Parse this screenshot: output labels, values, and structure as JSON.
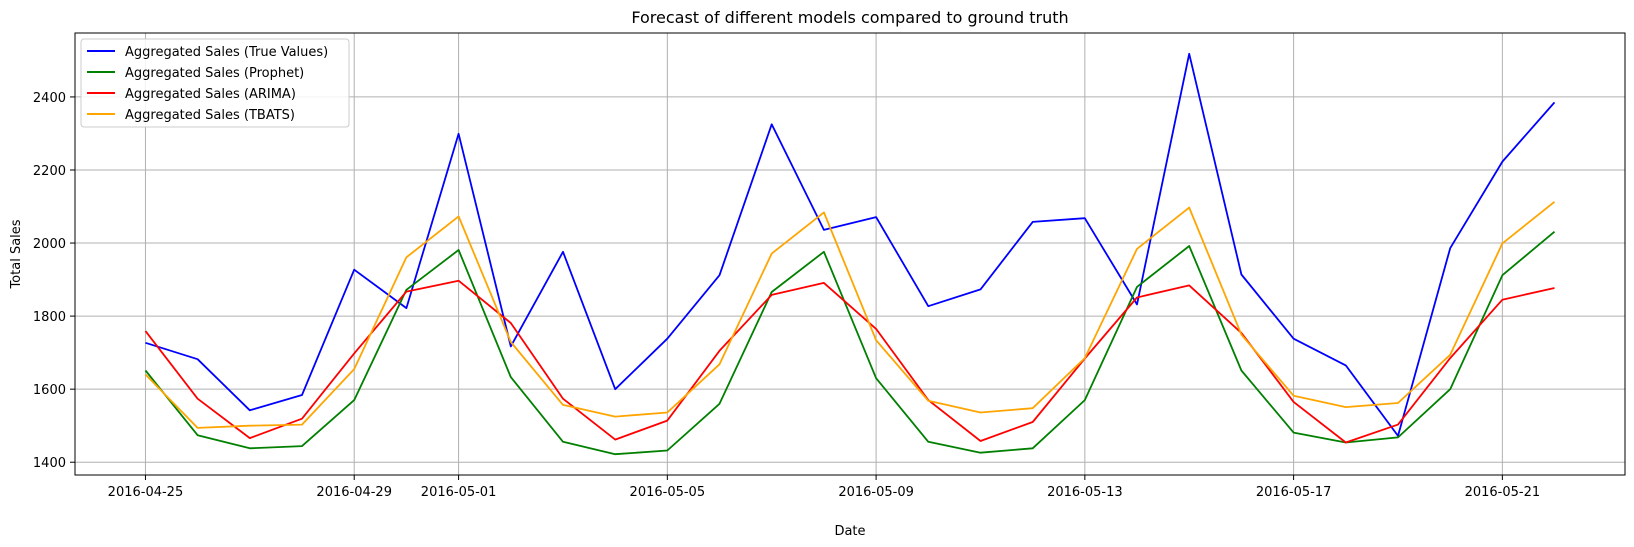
{
  "chart_data": {
    "type": "line",
    "title": "Forecast of different models compared to ground truth",
    "xlabel": "Date",
    "ylabel": "Total Sales",
    "x": [
      "2016-04-25",
      "2016-04-26",
      "2016-04-27",
      "2016-04-28",
      "2016-04-29",
      "2016-04-30",
      "2016-05-01",
      "2016-05-02",
      "2016-05-03",
      "2016-05-04",
      "2016-05-05",
      "2016-05-06",
      "2016-05-07",
      "2016-05-08",
      "2016-05-09",
      "2016-05-10",
      "2016-05-11",
      "2016-05-12",
      "2016-05-13",
      "2016-05-14",
      "2016-05-15",
      "2016-05-16",
      "2016-05-17",
      "2016-05-18",
      "2016-05-19",
      "2016-05-20",
      "2016-05-21",
      "2016-05-22"
    ],
    "x_ticks": [
      "2016-04-25",
      "2016-04-29",
      "2016-05-01",
      "2016-05-05",
      "2016-05-09",
      "2016-05-13",
      "2016-05-17",
      "2016-05-21"
    ],
    "y_ticks": [
      1400,
      1600,
      1800,
      2000,
      2200,
      2400
    ],
    "ylim": [
      1365,
      2575
    ],
    "grid": true,
    "legend_position": "top-left",
    "series": [
      {
        "name": "Aggregated Sales (True Values)",
        "color": "#0000ff",
        "values": [
          1727,
          1682,
          1542,
          1584,
          1927,
          1822,
          2299,
          1717,
          1976,
          1600,
          1738,
          1912,
          2325,
          2036,
          2071,
          1827,
          1873,
          2058,
          2068,
          1832,
          2518,
          1914,
          1738,
          1665,
          1472,
          1986,
          2223,
          2385
        ]
      },
      {
        "name": "Aggregated Sales (Prophet)",
        "color": "#008000",
        "values": [
          1651,
          1474,
          1438,
          1444,
          1570,
          1872,
          1981,
          1633,
          1456,
          1422,
          1432,
          1560,
          1866,
          1976,
          1630,
          1456,
          1426,
          1438,
          1570,
          1880,
          1992,
          1651,
          1481,
          1454,
          1468,
          1600,
          1912,
          2031
        ]
      },
      {
        "name": "Aggregated Sales (ARIMA)",
        "color": "#ff0000",
        "values": [
          1759,
          1574,
          1466,
          1519,
          1698,
          1867,
          1897,
          1781,
          1574,
          1462,
          1514,
          1705,
          1858,
          1891,
          1765,
          1570,
          1458,
          1510,
          1684,
          1851,
          1884,
          1754,
          1565,
          1454,
          1503,
          1685,
          1845,
          1877
        ]
      },
      {
        "name": "Aggregated Sales (TBATS)",
        "color": "#ffa500",
        "values": [
          1640,
          1494,
          1500,
          1503,
          1655,
          1961,
          2073,
          1729,
          1557,
          1525,
          1536,
          1668,
          1971,
          2084,
          1734,
          1568,
          1536,
          1548,
          1685,
          1984,
          2097,
          1749,
          1582,
          1551,
          1562,
          1694,
          1999,
          2113
        ]
      }
    ]
  }
}
